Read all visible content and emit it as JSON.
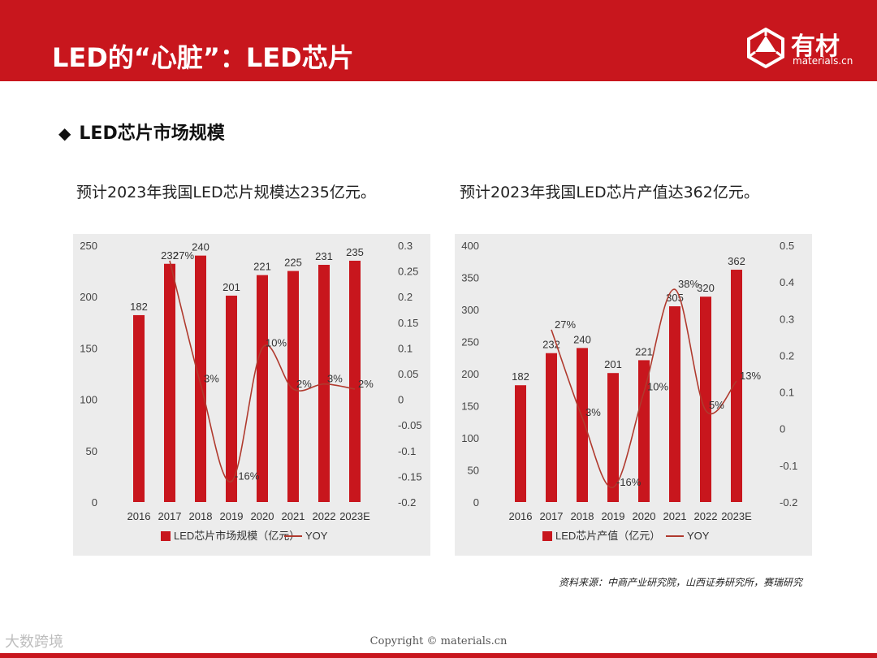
{
  "header": {
    "title": "LED的“心脏”：LED芯片",
    "logo_text": "有材",
    "logo_sub": "materials.cn",
    "brand_color": "#c8161d"
  },
  "section_title": "LED芯片市场规模",
  "footer": {
    "source": "资料来源：中商产业研究院，山西证券研究所，赛瑞研究",
    "copyright": "Copyright © materials.cn",
    "watermark": "大数跨境"
  },
  "chart_data": [
    {
      "type": "bar+line",
      "subtitle": "预计2023年我国LED芯片规模达235亿元。",
      "categories": [
        "2016",
        "2017",
        "2018",
        "2019",
        "2020",
        "2021",
        "2022",
        "2023E"
      ],
      "series": [
        {
          "name": "LED芯片市场规模（亿元）",
          "axis": "left",
          "values": [
            182,
            232,
            240,
            201,
            221,
            225,
            231,
            235
          ],
          "color": "#c8161d"
        },
        {
          "name": "YOY",
          "axis": "right",
          "values": [
            null,
            0.27,
            0.03,
            -0.16,
            0.1,
            0.02,
            0.03,
            0.02
          ],
          "labels": [
            "",
            "27%",
            "3%",
            "-16%",
            "10%",
            "2%",
            "3%",
            "2%"
          ],
          "color": "#b03a2e"
        }
      ],
      "y_left": {
        "min": 0,
        "max": 250,
        "ticks": [
          "0",
          "50",
          "100",
          "150",
          "200",
          "250"
        ]
      },
      "y_right": {
        "min": -0.2,
        "max": 0.3,
        "ticks": [
          "-0.2",
          "-0.15",
          "-0.1",
          "-0.05",
          "0",
          "0.05",
          "0.1",
          "0.15",
          "0.2",
          "0.25",
          "0.3"
        ]
      },
      "legend": "bottom"
    },
    {
      "type": "bar+line",
      "subtitle": "预计2023年我国LED芯片产值达362亿元。",
      "categories": [
        "2016",
        "2017",
        "2018",
        "2019",
        "2020",
        "2021",
        "2022",
        "2023E"
      ],
      "series": [
        {
          "name": "LED芯片产值（亿元）",
          "axis": "left",
          "values": [
            182,
            232,
            240,
            201,
            221,
            305,
            320,
            362
          ],
          "color": "#c8161d"
        },
        {
          "name": "YOY",
          "axis": "right",
          "values": [
            null,
            0.27,
            0.03,
            -0.16,
            0.1,
            0.38,
            0.05,
            0.13
          ],
          "labels": [
            "",
            "27%",
            "3%",
            "-16%",
            "10%",
            "38%",
            "5%",
            "13%"
          ],
          "color": "#b03a2e"
        }
      ],
      "y_left": {
        "min": 0,
        "max": 400,
        "ticks": [
          "0",
          "50",
          "100",
          "150",
          "200",
          "250",
          "300",
          "350",
          "400"
        ]
      },
      "y_right": {
        "min": -0.2,
        "max": 0.5,
        "ticks": [
          "-0.2",
          "-0.1",
          "0",
          "0.1",
          "0.2",
          "0.3",
          "0.4",
          "0.5"
        ]
      },
      "legend": "bottom"
    }
  ]
}
